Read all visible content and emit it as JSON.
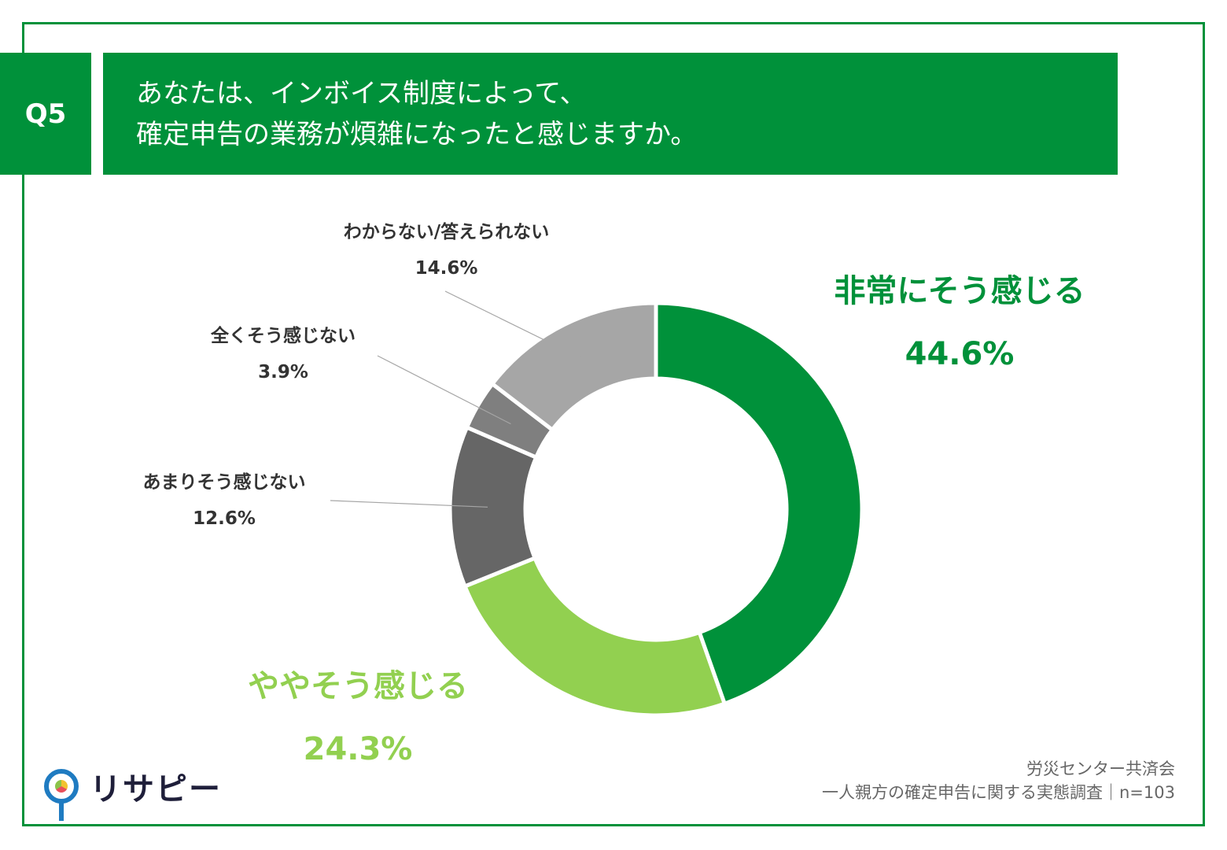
{
  "question": {
    "badge": "Q5",
    "title_line1": "あなたは、インボイス制度によって、",
    "title_line2": "確定申告の業務が煩雑になったと感じますか。"
  },
  "chart_data": {
    "type": "pie",
    "categories": [
      "非常にそう感じる",
      "ややそう感じる",
      "あまりそう感じない",
      "全くそう感じない",
      "わからない/答えられない"
    ],
    "values": [
      44.6,
      24.3,
      12.6,
      3.9,
      14.6
    ],
    "value_labels": [
      "44.6%",
      "24.3%",
      "12.6%",
      "3.9%",
      "14.6%"
    ],
    "colors": [
      "#00913a",
      "#92d050",
      "#666666",
      "#7f7f7f",
      "#a6a6a6"
    ],
    "label_colors": [
      "#00913a",
      "#92d050",
      "#333333",
      "#333333",
      "#333333"
    ]
  },
  "logo": {
    "text": "リサピー"
  },
  "source": {
    "line1": "労災センター共済会",
    "line2": "一人親方の確定申告に関する実態調査｜n=103"
  },
  "colors": {
    "brand_green": "#00913a",
    "light_green": "#92d050",
    "frame": "#00913a"
  }
}
